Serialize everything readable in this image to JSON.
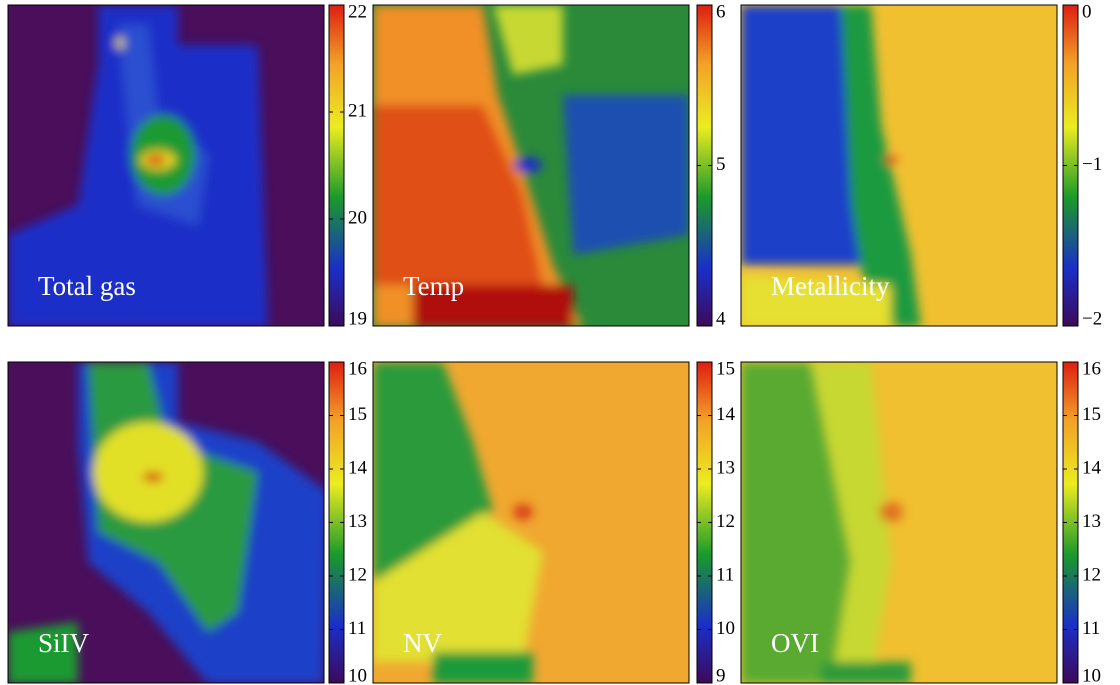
{
  "chart_data": [
    {
      "type": "heatmap",
      "title": "Total gas",
      "clim": [
        19,
        22
      ],
      "cticks": [
        19,
        20,
        21,
        22
      ]
    },
    {
      "type": "heatmap",
      "title": "Temp",
      "clim": [
        4,
        6
      ],
      "cticks": [
        4,
        5,
        6
      ]
    },
    {
      "type": "heatmap",
      "title": "Metallicity",
      "clim": [
        -2,
        0
      ],
      "cticks": [
        {
          "value": -2,
          "label": "−2"
        },
        {
          "value": -1,
          "label": "−1"
        },
        0
      ]
    },
    {
      "type": "heatmap",
      "title": "SiIV",
      "clim": [
        10,
        16
      ],
      "cticks": [
        10,
        11,
        12,
        13,
        14,
        15,
        16
      ]
    },
    {
      "type": "heatmap",
      "title": "NV",
      "clim": [
        9,
        15
      ],
      "cticks": [
        9,
        10,
        11,
        12,
        13,
        14,
        15
      ]
    },
    {
      "type": "heatmap",
      "title": "OVI",
      "clim": [
        10,
        16
      ],
      "cticks": [
        10,
        11,
        12,
        13,
        14,
        15,
        16
      ]
    }
  ]
}
